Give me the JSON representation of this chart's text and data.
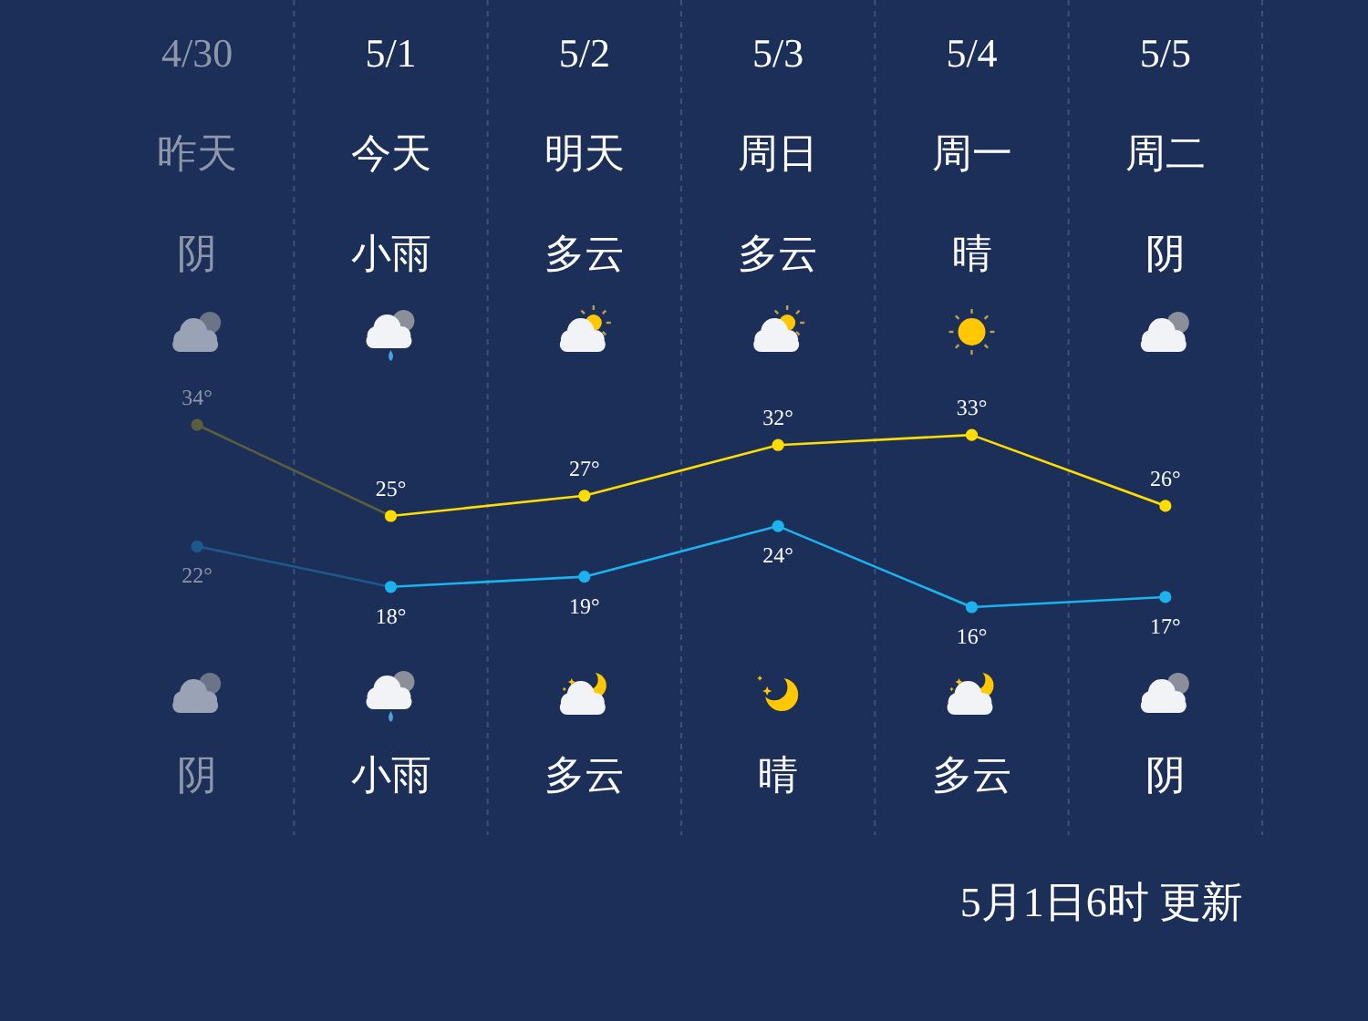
{
  "chart_data": {
    "type": "line",
    "categories": [
      "4/30",
      "5/1",
      "5/2",
      "5/3",
      "5/4",
      "5/5"
    ],
    "series": [
      {
        "color": "#ffdd00",
        "colors": [
          "#5b5d3d",
          "#ffdd00",
          "#ffdd00",
          "#ffdd00",
          "#ffdd00",
          "#ffdd00"
        ],
        "values": [
          34,
          25,
          27,
          32,
          33,
          26
        ],
        "value_labels": [
          "34°",
          "25°",
          "27°",
          "32°",
          "33°",
          "26°"
        ]
      },
      {
        "color": "#1cb2ee",
        "colors": [
          "#1d5a8c",
          "#1cb2ee",
          "#1cb2ee",
          "#1cb2ee",
          "#1cb2ee",
          "#1cb2ee"
        ],
        "values": [
          22,
          18,
          19,
          24,
          16,
          17
        ],
        "value_labels": [
          "22°",
          "18°",
          "19°",
          "24°",
          "16°",
          "17°"
        ]
      }
    ],
    "marker": "circle",
    "line_style": "solid",
    "grid": "x",
    "tick_labels": "x",
    "annotations": [
      "昨天",
      "今天",
      "明天",
      "周日",
      "周一",
      "周二",
      "阴",
      "小雨",
      "多云",
      "多云",
      "晴",
      "阴",
      "阴",
      "小雨",
      "多云",
      "晴",
      "多云",
      "阴",
      "5月1日6时 更新"
    ]
  }
}
